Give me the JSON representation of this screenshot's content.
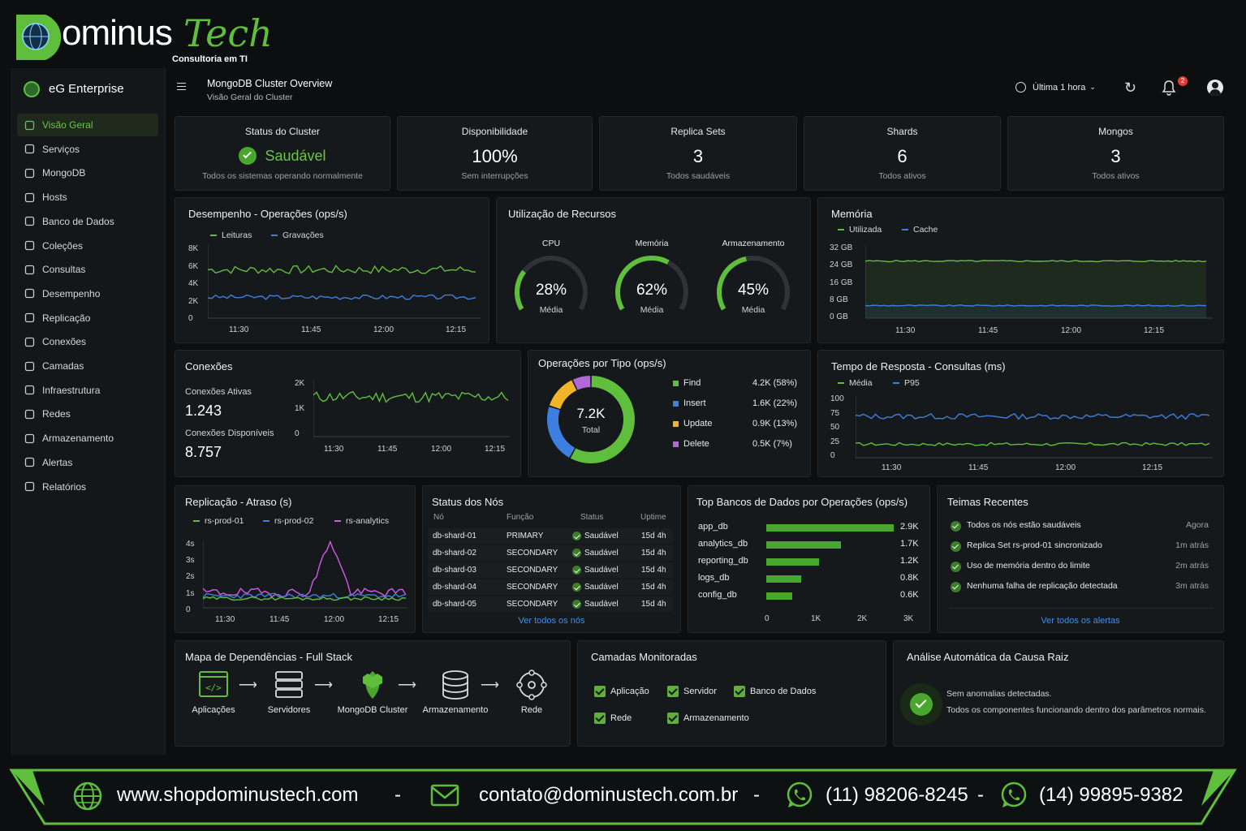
{
  "brand": {
    "name_main": "ominus",
    "name_script": "Tech",
    "tagline": "Consultoria em TI"
  },
  "sidebar": {
    "app_name": "eG Enterprise",
    "items": [
      {
        "label": "Visão Geral",
        "icon": "dashboard-icon",
        "active": true
      },
      {
        "label": "Serviços",
        "icon": "gear-icon"
      },
      {
        "label": "MongoDB",
        "icon": "mongodb-icon"
      },
      {
        "label": "Hosts",
        "icon": "server-icon"
      },
      {
        "label": "Banco de Dados",
        "icon": "database-icon"
      },
      {
        "label": "Coleções",
        "icon": "collection-icon"
      },
      {
        "label": "Consultas",
        "icon": "query-icon"
      },
      {
        "label": "Desempenho",
        "icon": "gauge-icon"
      },
      {
        "label": "Replicação",
        "icon": "replication-icon"
      },
      {
        "label": "Conexões",
        "icon": "connection-icon"
      },
      {
        "label": "Camadas",
        "icon": "layers-icon"
      },
      {
        "label": "Infraestrutura",
        "icon": "infra-icon"
      },
      {
        "label": "Redes",
        "icon": "network-icon"
      },
      {
        "label": "Armazenamento",
        "icon": "storage-icon"
      },
      {
        "label": "Alertas",
        "icon": "bell-icon"
      },
      {
        "label": "Relatórios",
        "icon": "report-icon"
      }
    ]
  },
  "header": {
    "title": "MongoDB Cluster Overview",
    "subtitle": "Visão Geral do Cluster",
    "time_range": "Última 1 hora",
    "notifications": "2"
  },
  "stats": [
    {
      "title": "Status do Cluster",
      "value": "Saudável",
      "sub": "Todos os sistemas operando normalmente"
    },
    {
      "title": "Disponibilidade",
      "value": "100%",
      "sub": "Sem interrupções"
    },
    {
      "title": "Replica Sets",
      "value": "3",
      "sub": "Todos saudáveis"
    },
    {
      "title": "Shards",
      "value": "6",
      "sub": "Todos ativos"
    },
    {
      "title": "Mongos",
      "value": "3",
      "sub": "Todos ativos"
    }
  ],
  "colors": {
    "green": "#5fbe3c",
    "blue": "#3d7fe0",
    "yellow": "#f0b429",
    "purple": "#b06ad8",
    "magenta": "#d25ce8"
  },
  "perf": {
    "title": "Desempenho - Operações (ops/s)",
    "legend": [
      "Leituras",
      "Gravações"
    ],
    "yticks": [
      "8K",
      "6K",
      "4K",
      "2K",
      "0"
    ],
    "xticks": [
      "11:30",
      "11:45",
      "12:00",
      "12:15"
    ]
  },
  "resources": {
    "title": "Utilização de Recursos",
    "gauges": [
      {
        "label": "CPU",
        "value": "28%",
        "pct": 28,
        "sub": "Média"
      },
      {
        "label": "Memória",
        "value": "62%",
        "pct": 62,
        "sub": "Média"
      },
      {
        "label": "Armazenamento",
        "value": "45%",
        "pct": 45,
        "sub": "Média"
      }
    ]
  },
  "memory": {
    "title": "Memória",
    "legend": [
      "Utilizada",
      "Cache"
    ],
    "yticks": [
      "32 GB",
      "24 GB",
      "16 GB",
      "8 GB",
      "0 GB"
    ],
    "xticks": [
      "11:30",
      "11:45",
      "12:00",
      "12:15"
    ]
  },
  "connections": {
    "title": "Conexões",
    "active_label": "Conexões Ativas",
    "active": "1.243",
    "avail_label": "Conexões Disponíveis",
    "avail": "8.757",
    "yticks": [
      "2K",
      "1K",
      "0"
    ],
    "xticks": [
      "11:30",
      "11:45",
      "12:00",
      "12:15"
    ]
  },
  "optype": {
    "title": "Operações por Tipo (ops/s)",
    "center_value": "7.2K",
    "center_label": "Total",
    "items": [
      {
        "name": "Find",
        "value": "4.2K (58%)",
        "pct": 58,
        "color": "#5fbe3c"
      },
      {
        "name": "Insert",
        "value": "1.6K (22%)",
        "pct": 22,
        "color": "#3d7fe0"
      },
      {
        "name": "Update",
        "value": "0.9K (13%)",
        "pct": 13,
        "color": "#f0b429"
      },
      {
        "name": "Delete",
        "value": "0.5K (7%)",
        "pct": 7,
        "color": "#b06ad8"
      }
    ]
  },
  "response": {
    "title": "Tempo de Resposta - Consultas (ms)",
    "legend": [
      "Média",
      "P95"
    ],
    "yticks": [
      "100",
      "75",
      "50",
      "25",
      "0"
    ],
    "xticks": [
      "11:30",
      "11:45",
      "12:00",
      "12:15"
    ]
  },
  "replication": {
    "title": "Replicação - Atraso (s)",
    "legend": [
      "rs-prod-01",
      "rs-prod-02",
      "rs-analytics"
    ],
    "yticks": [
      "4s",
      "3s",
      "2s",
      "1s",
      "0"
    ],
    "xticks": [
      "11:30",
      "11:45",
      "12:00",
      "12:15"
    ]
  },
  "nodes": {
    "title": "Status dos Nós",
    "headers": [
      "Nó",
      "Função",
      "Status",
      "Uptime"
    ],
    "rows": [
      [
        "db-shard-01",
        "PRIMARY",
        "Saudável",
        "15d 4h"
      ],
      [
        "db-shard-02",
        "SECONDARY",
        "Saudável",
        "15d 4h"
      ],
      [
        "db-shard-03",
        "SECONDARY",
        "Saudável",
        "15d 4h"
      ],
      [
        "db-shard-04",
        "SECONDARY",
        "Saudável",
        "15d 4h"
      ],
      [
        "db-shard-05",
        "SECONDARY",
        "Saudável",
        "15d 4h"
      ]
    ],
    "link": "Ver todos os nós"
  },
  "topdb": {
    "title": "Top Bancos de Dados por Operações (ops/s)",
    "rows": [
      {
        "name": "app_db",
        "label": "2.9K",
        "value": 2.9
      },
      {
        "name": "analytics_db",
        "label": "1.7K",
        "value": 1.7
      },
      {
        "name": "reporting_db",
        "label": "1.2K",
        "value": 1.2
      },
      {
        "name": "logs_db",
        "label": "0.8K",
        "value": 0.8
      },
      {
        "name": "config_db",
        "label": "0.6K",
        "value": 0.6
      }
    ],
    "xticks": [
      "0",
      "1K",
      "2K",
      "3K"
    ]
  },
  "recent": {
    "title": "Teimas Recentes",
    "rows": [
      [
        "Todos os nós estão saudáveis",
        "Agora"
      ],
      [
        "Replica Set rs-prod-01 sincronizado",
        "1m atrás"
      ],
      [
        "Uso de memória dentro do limite",
        "2m atrás"
      ],
      [
        "Nenhuma falha de replicação detectada",
        "3m atrás"
      ]
    ],
    "link": "Ver todos os alertas"
  },
  "depmap": {
    "title": "Mapa de Dependências - Full Stack",
    "nodes": [
      "Aplicações",
      "Servidores",
      "MongoDB Cluster",
      "Armazenamento",
      "Rede"
    ]
  },
  "layers": {
    "title": "Camadas Monitoradas",
    "items": [
      "Aplicação",
      "Servidor",
      "Banco de Dados",
      "Rede",
      "Armazenamento"
    ]
  },
  "rca": {
    "title": "Análise Automática da Causa Raiz",
    "line1": "Sem anomalias detectadas.",
    "line2": "Todos os componentes funcionando dentro dos parâmetros normais."
  },
  "footer": {
    "site": "www.shopdominustech.com",
    "sep": "-",
    "email": "contato@dominustech.com.br",
    "phone1": "(11) 98206-8245",
    "phone2": "(14) 99895-9382"
  }
}
